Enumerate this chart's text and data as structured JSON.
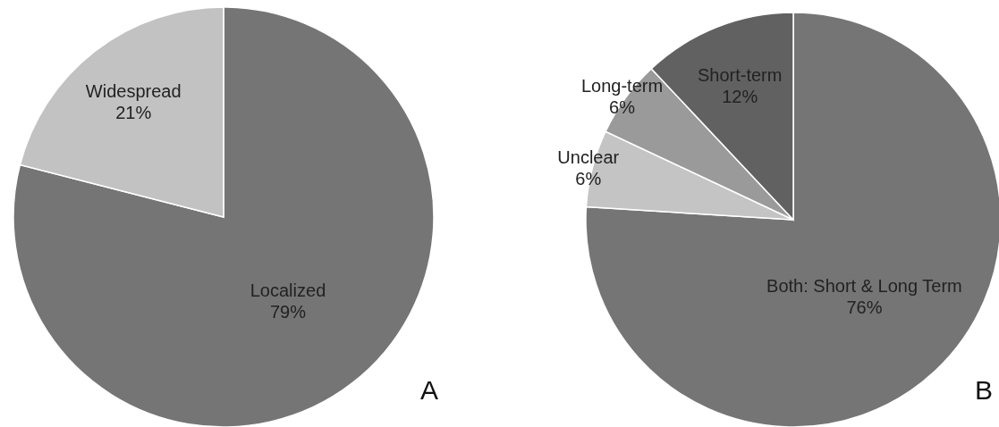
{
  "chart_data": [
    {
      "type": "pie",
      "categories": [
        "Localized",
        "Widespread"
      ],
      "values": [
        79,
        21
      ],
      "value_labels": [
        "79%",
        "21%"
      ],
      "colors": [
        "#757575",
        "#c2c2c2"
      ],
      "annotations": [
        "A"
      ]
    },
    {
      "type": "pie",
      "categories": [
        "Both: Short & Long Term",
        "Unclear",
        "Long-term",
        "Short-term"
      ],
      "values": [
        76,
        6,
        6,
        12
      ],
      "value_labels": [
        "76%",
        "6%",
        "6%",
        "12%"
      ],
      "colors": [
        "#757575",
        "#c4c4c4",
        "#9a9a9a",
        "#616161"
      ],
      "annotations": [
        "B"
      ]
    }
  ]
}
